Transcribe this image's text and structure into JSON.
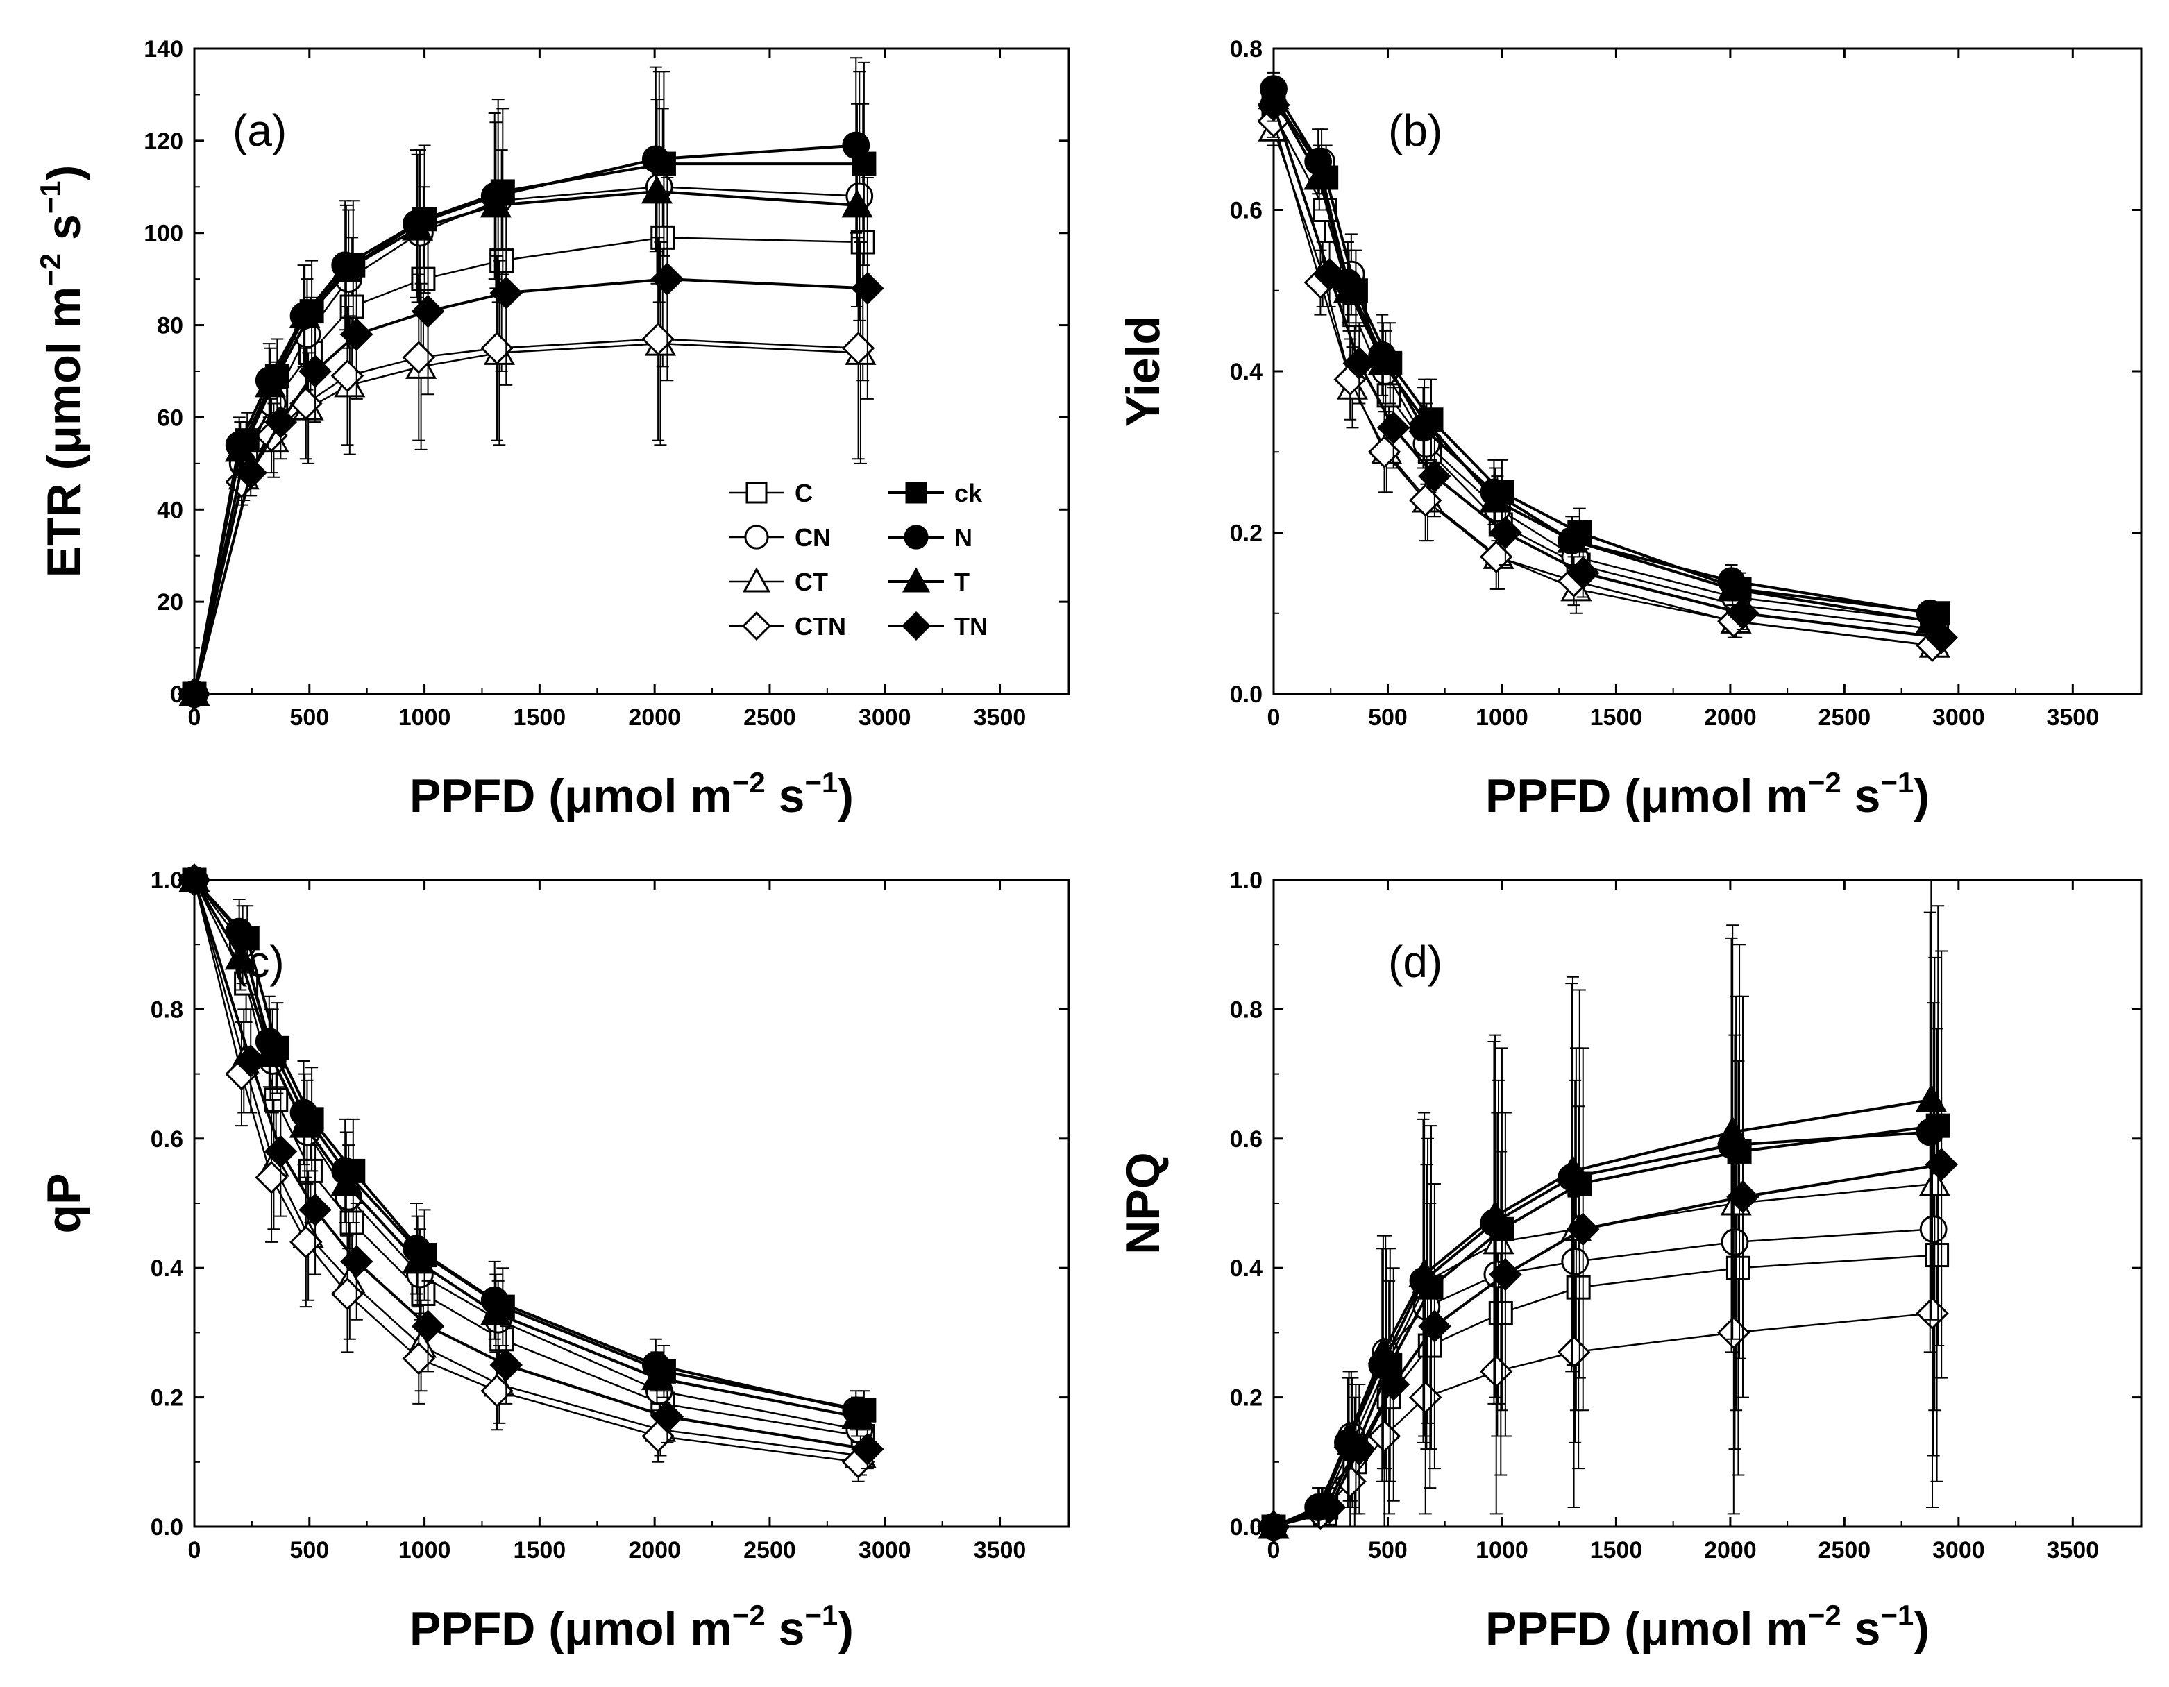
{
  "figure": {
    "panels_note": "Four-panel chlorophyll fluorescence light-response figure"
  },
  "legend": {
    "entries": [
      {
        "label": "C",
        "series": "C"
      },
      {
        "label": "ck",
        "series": "ck"
      },
      {
        "label": "CN",
        "series": "CN"
      },
      {
        "label": "N",
        "series": "N"
      },
      {
        "label": "CT",
        "series": "CT"
      },
      {
        "label": "T",
        "series": "T"
      },
      {
        "label": "CTN",
        "series": "CTN"
      },
      {
        "label": "TN",
        "series": "TN"
      }
    ]
  },
  "series_styles": {
    "C": {
      "marker": "square",
      "filled": false
    },
    "CN": {
      "marker": "circle",
      "filled": false
    },
    "CT": {
      "marker": "triangle",
      "filled": false
    },
    "CTN": {
      "marker": "diamond",
      "filled": false
    },
    "ck": {
      "marker": "square",
      "filled": true
    },
    "N": {
      "marker": "circle",
      "filled": true
    },
    "T": {
      "marker": "triangle",
      "filled": true
    },
    "TN": {
      "marker": "diamond",
      "filled": true
    }
  },
  "chart_data": [
    {
      "type": "line",
      "panel_label": "(a)",
      "xlabel": "PPFD (μmol m",
      "xlabel_exp1": "−2",
      "xlabel_mid": " s",
      "xlabel_exp2": "−1",
      "xlabel_end": ")",
      "ylabel": "ETR (μmol m",
      "ylabel_exp1": "−2",
      "ylabel_mid": " s",
      "ylabel_exp2": "−1",
      "ylabel_end": ")",
      "xlim": [
        0,
        3800
      ],
      "ylim": [
        0,
        140
      ],
      "xticks": [
        0,
        500,
        1000,
        1500,
        2000,
        2500,
        3000,
        3500
      ],
      "yticks": [
        0,
        20,
        40,
        60,
        80,
        100,
        120,
        140
      ],
      "ytick_labels": [
        "0",
        "20",
        "40",
        "60",
        "80",
        "100",
        "120",
        "140"
      ],
      "x": [
        0,
        200,
        330,
        480,
        660,
        970,
        1310,
        2010,
        2880
      ],
      "show_legend": true,
      "series": [
        {
          "name": "C",
          "values": [
            0,
            53,
            64,
            74,
            84,
            90,
            94,
            99,
            98
          ],
          "err": [
            0,
            6,
            8,
            12,
            15,
            20,
            24,
            28,
            30
          ]
        },
        {
          "name": "CN",
          "values": [
            0,
            50,
            63,
            78,
            90,
            100,
            107,
            110,
            108
          ],
          "err": [
            0,
            6,
            8,
            12,
            15,
            18,
            22,
            25,
            27
          ]
        },
        {
          "name": "CT",
          "values": [
            0,
            47,
            55,
            62,
            67,
            71,
            74,
            76,
            74
          ],
          "err": [
            0,
            5,
            8,
            12,
            15,
            18,
            20,
            22,
            24
          ]
        },
        {
          "name": "CTN",
          "values": [
            0,
            46,
            56,
            63,
            69,
            73,
            75,
            77,
            75
          ],
          "err": [
            0,
            5,
            8,
            12,
            15,
            18,
            20,
            22,
            24
          ]
        },
        {
          "name": "ck",
          "values": [
            0,
            55,
            69,
            83,
            93,
            103,
            109,
            115,
            115
          ],
          "err": [
            0,
            6,
            8,
            11,
            14,
            16,
            18,
            20,
            22
          ]
        },
        {
          "name": "N",
          "values": [
            0,
            54,
            68,
            82,
            93,
            102,
            108,
            116,
            119
          ],
          "err": [
            0,
            6,
            8,
            11,
            14,
            16,
            18,
            20,
            19
          ]
        },
        {
          "name": "T",
          "values": [
            0,
            53,
            67,
            82,
            92,
            101,
            106,
            109,
            106
          ],
          "err": [
            0,
            6,
            8,
            11,
            14,
            16,
            18,
            20,
            22
          ]
        },
        {
          "name": "TN",
          "values": [
            0,
            48,
            59,
            70,
            78,
            83,
            87,
            90,
            88
          ],
          "err": [
            0,
            5,
            8,
            11,
            14,
            18,
            20,
            22,
            24
          ]
        }
      ]
    },
    {
      "type": "line",
      "panel_label": "(b)",
      "xlabel": "PPFD (μmol m",
      "xlabel_exp1": "−2",
      "xlabel_mid": " s",
      "xlabel_exp2": "−1",
      "xlabel_end": ")",
      "ylabel": "Yield",
      "xlim": [
        0,
        3800
      ],
      "ylim": [
        0,
        0.8
      ],
      "xticks": [
        0,
        500,
        1000,
        1500,
        2000,
        2500,
        3000,
        3500
      ],
      "yticks": [
        0,
        0.2,
        0.4,
        0.6,
        0.8
      ],
      "ytick_labels": [
        "0.0",
        "0.2",
        "0.4",
        "0.6",
        "0.8"
      ],
      "x": [
        0,
        200,
        330,
        480,
        660,
        970,
        1310,
        2010,
        2880
      ],
      "show_legend": false,
      "series": [
        {
          "name": "C",
          "values": [
            0.72,
            0.6,
            0.47,
            0.37,
            0.3,
            0.21,
            0.16,
            0.11,
            0.08
          ],
          "err": [
            0.02,
            0.04,
            0.05,
            0.05,
            0.05,
            0.04,
            0.03,
            0.02,
            0.01
          ]
        },
        {
          "name": "CN",
          "values": [
            0.73,
            0.66,
            0.52,
            0.4,
            0.31,
            0.23,
            0.17,
            0.12,
            0.09
          ],
          "err": [
            0.02,
            0.04,
            0.05,
            0.05,
            0.05,
            0.04,
            0.03,
            0.02,
            0.01
          ]
        },
        {
          "name": "CT",
          "values": [
            0.7,
            0.52,
            0.38,
            0.3,
            0.24,
            0.17,
            0.13,
            0.09,
            0.06
          ],
          "err": [
            0.02,
            0.04,
            0.05,
            0.05,
            0.05,
            0.04,
            0.03,
            0.02,
            0.01
          ]
        },
        {
          "name": "CTN",
          "values": [
            0.71,
            0.51,
            0.39,
            0.3,
            0.24,
            0.17,
            0.14,
            0.09,
            0.06
          ],
          "err": [
            0.02,
            0.04,
            0.05,
            0.05,
            0.05,
            0.04,
            0.03,
            0.02,
            0.01
          ]
        },
        {
          "name": "ck",
          "values": [
            0.74,
            0.64,
            0.5,
            0.41,
            0.34,
            0.25,
            0.2,
            0.13,
            0.1
          ],
          "err": [
            0.02,
            0.04,
            0.05,
            0.05,
            0.05,
            0.04,
            0.03,
            0.02,
            0.01
          ]
        },
        {
          "name": "N",
          "values": [
            0.75,
            0.66,
            0.51,
            0.42,
            0.33,
            0.25,
            0.19,
            0.14,
            0.1
          ],
          "err": [
            0.02,
            0.04,
            0.05,
            0.05,
            0.05,
            0.04,
            0.03,
            0.02,
            0.01
          ]
        },
        {
          "name": "T",
          "values": [
            0.74,
            0.64,
            0.5,
            0.41,
            0.34,
            0.24,
            0.19,
            0.13,
            0.09
          ],
          "err": [
            0.02,
            0.04,
            0.05,
            0.05,
            0.05,
            0.04,
            0.03,
            0.02,
            0.01
          ]
        },
        {
          "name": "TN",
          "values": [
            0.73,
            0.52,
            0.41,
            0.33,
            0.27,
            0.2,
            0.15,
            0.1,
            0.07
          ],
          "err": [
            0.02,
            0.04,
            0.05,
            0.05,
            0.05,
            0.04,
            0.03,
            0.02,
            0.01
          ]
        }
      ]
    },
    {
      "type": "line",
      "panel_label": "(c)",
      "xlabel": "PPFD (μmol m",
      "xlabel_exp1": "−2",
      "xlabel_mid": " s",
      "xlabel_exp2": "−1",
      "xlabel_end": ")",
      "ylabel": "qP",
      "xlim": [
        0,
        3800
      ],
      "ylim": [
        0,
        1.0
      ],
      "xticks": [
        0,
        500,
        1000,
        1500,
        2000,
        2500,
        3000,
        3500
      ],
      "yticks": [
        0,
        0.2,
        0.4,
        0.6,
        0.8,
        1.0
      ],
      "ytick_labels": [
        "0.0",
        "0.2",
        "0.4",
        "0.6",
        "0.8",
        "1.0"
      ],
      "x": [
        0,
        200,
        330,
        480,
        660,
        970,
        1310,
        2010,
        2880
      ],
      "show_legend": false,
      "series": [
        {
          "name": "C",
          "values": [
            1.0,
            0.84,
            0.66,
            0.55,
            0.47,
            0.36,
            0.29,
            0.19,
            0.14
          ],
          "err": [
            0.01,
            0.06,
            0.08,
            0.08,
            0.08,
            0.07,
            0.06,
            0.04,
            0.03
          ]
        },
        {
          "name": "CN",
          "values": [
            1.0,
            0.9,
            0.72,
            0.61,
            0.51,
            0.39,
            0.32,
            0.21,
            0.15
          ],
          "err": [
            0.01,
            0.06,
            0.08,
            0.08,
            0.08,
            0.07,
            0.06,
            0.04,
            0.03
          ]
        },
        {
          "name": "CT",
          "values": [
            1.0,
            0.72,
            0.56,
            0.45,
            0.38,
            0.28,
            0.22,
            0.15,
            0.11
          ],
          "err": [
            0.01,
            0.08,
            0.1,
            0.1,
            0.09,
            0.07,
            0.06,
            0.04,
            0.03
          ]
        },
        {
          "name": "CTN",
          "values": [
            1.0,
            0.7,
            0.54,
            0.44,
            0.36,
            0.26,
            0.21,
            0.14,
            0.1
          ],
          "err": [
            0.01,
            0.08,
            0.1,
            0.1,
            0.09,
            0.07,
            0.06,
            0.04,
            0.03
          ]
        },
        {
          "name": "ck",
          "values": [
            1.0,
            0.91,
            0.74,
            0.63,
            0.55,
            0.42,
            0.34,
            0.24,
            0.18
          ],
          "err": [
            0.01,
            0.05,
            0.07,
            0.08,
            0.08,
            0.07,
            0.06,
            0.04,
            0.03
          ]
        },
        {
          "name": "N",
          "values": [
            1.0,
            0.92,
            0.75,
            0.64,
            0.55,
            0.43,
            0.35,
            0.25,
            0.18
          ],
          "err": [
            0.01,
            0.05,
            0.07,
            0.08,
            0.08,
            0.07,
            0.06,
            0.04,
            0.03
          ]
        },
        {
          "name": "T",
          "values": [
            1.0,
            0.88,
            0.73,
            0.62,
            0.53,
            0.41,
            0.33,
            0.23,
            0.17
          ],
          "err": [
            0.01,
            0.05,
            0.07,
            0.08,
            0.08,
            0.07,
            0.06,
            0.04,
            0.03
          ]
        },
        {
          "name": "TN",
          "values": [
            1.0,
            0.72,
            0.58,
            0.49,
            0.41,
            0.31,
            0.25,
            0.17,
            0.12
          ],
          "err": [
            0.01,
            0.08,
            0.1,
            0.1,
            0.09,
            0.07,
            0.06,
            0.04,
            0.03
          ]
        }
      ]
    },
    {
      "type": "line",
      "panel_label": "(d)",
      "xlabel": "PPFD (μmol m",
      "xlabel_exp1": "−2",
      "xlabel_mid": " s",
      "xlabel_exp2": "−1",
      "xlabel_end": ")",
      "ylabel": "NPQ",
      "xlim": [
        0,
        3800
      ],
      "ylim": [
        0,
        1.0
      ],
      "xticks": [
        0,
        500,
        1000,
        1500,
        2000,
        2500,
        3000,
        3500
      ],
      "yticks": [
        0,
        0.2,
        0.4,
        0.6,
        0.8,
        1.0
      ],
      "ytick_labels": [
        "0.0",
        "0.2",
        "0.4",
        "0.6",
        "0.8",
        "1.0"
      ],
      "x": [
        0,
        200,
        330,
        480,
        660,
        970,
        1310,
        2010,
        2880
      ],
      "show_legend": false,
      "series": [
        {
          "name": "C",
          "values": [
            0,
            0.02,
            0.1,
            0.2,
            0.28,
            0.33,
            0.37,
            0.4,
            0.42
          ],
          "err": [
            0.01,
            0.03,
            0.1,
            0.18,
            0.22,
            0.25,
            0.28,
            0.32,
            0.35
          ]
        },
        {
          "name": "CN",
          "values": [
            0,
            0.03,
            0.14,
            0.27,
            0.34,
            0.39,
            0.41,
            0.44,
            0.46
          ],
          "err": [
            0.01,
            0.03,
            0.1,
            0.18,
            0.22,
            0.25,
            0.28,
            0.32,
            0.35
          ]
        },
        {
          "name": "CT",
          "values": [
            0,
            0.03,
            0.13,
            0.25,
            0.38,
            0.44,
            0.46,
            0.5,
            0.53
          ],
          "err": [
            0.01,
            0.03,
            0.1,
            0.18,
            0.22,
            0.25,
            0.28,
            0.32,
            0.35
          ]
        },
        {
          "name": "CTN",
          "values": [
            0,
            0.02,
            0.07,
            0.14,
            0.2,
            0.24,
            0.27,
            0.3,
            0.33
          ],
          "err": [
            0.01,
            0.03,
            0.08,
            0.14,
            0.18,
            0.22,
            0.24,
            0.28,
            0.3
          ]
        },
        {
          "name": "ck",
          "values": [
            0,
            0.03,
            0.12,
            0.25,
            0.37,
            0.46,
            0.53,
            0.58,
            0.62
          ],
          "err": [
            0.01,
            0.03,
            0.1,
            0.18,
            0.25,
            0.28,
            0.3,
            0.32,
            0.34
          ]
        },
        {
          "name": "N",
          "values": [
            0,
            0.03,
            0.13,
            0.25,
            0.38,
            0.47,
            0.54,
            0.59,
            0.61
          ],
          "err": [
            0.01,
            0.03,
            0.1,
            0.18,
            0.25,
            0.28,
            0.3,
            0.32,
            0.34
          ]
        },
        {
          "name": "T",
          "values": [
            0,
            0.03,
            0.14,
            0.27,
            0.39,
            0.48,
            0.55,
            0.61,
            0.66
          ],
          "err": [
            0.01,
            0.03,
            0.1,
            0.18,
            0.25,
            0.28,
            0.3,
            0.32,
            0.34
          ]
        },
        {
          "name": "TN",
          "values": [
            0,
            0.03,
            0.12,
            0.22,
            0.31,
            0.39,
            0.46,
            0.51,
            0.56
          ],
          "err": [
            0.01,
            0.03,
            0.1,
            0.18,
            0.22,
            0.25,
            0.28,
            0.31,
            0.33
          ]
        }
      ]
    }
  ]
}
